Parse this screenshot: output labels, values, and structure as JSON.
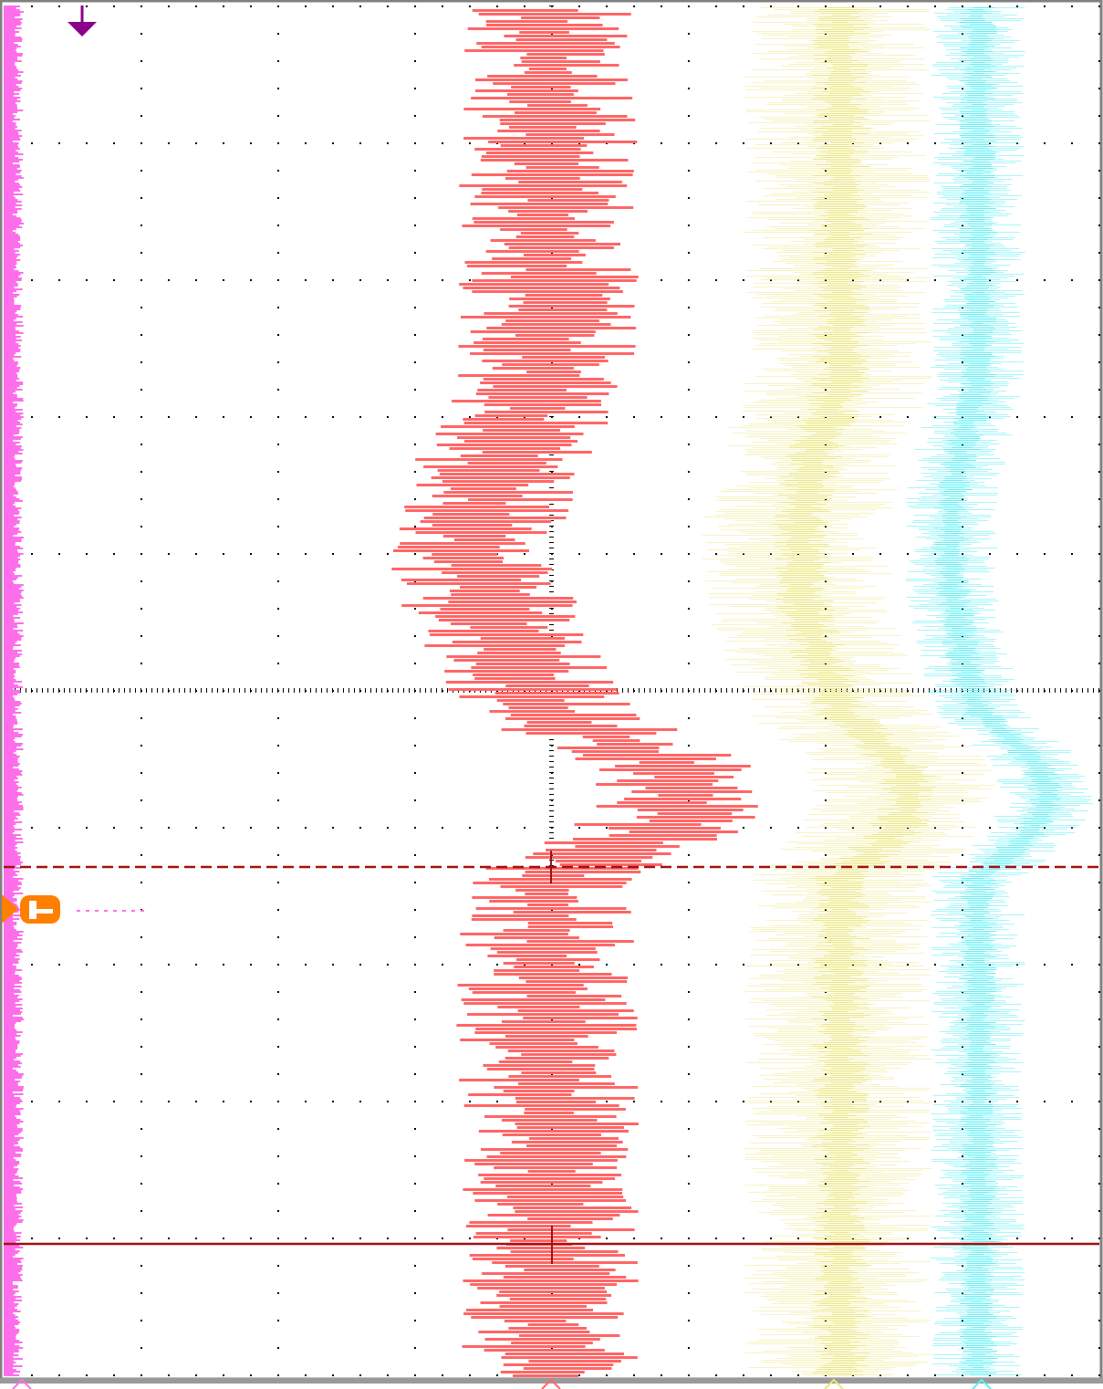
{
  "screen": {
    "rotation": "portrait-rotated-90",
    "grid": {
      "time_divisions": 10,
      "volt_divisions": 8,
      "style": "dotted"
    }
  },
  "colors": {
    "background": "#ffffff",
    "grid": "#000000",
    "channel_magenta": "#ff6eea",
    "channel_red": "#ff6666",
    "channel_yellow": "#ebe67a",
    "channel_cyan": "#5ef0f5",
    "trigger_level": "#a01010",
    "cursor": "#a01010",
    "trigger_marker": "#8a008a",
    "reference_marker": "#ff7f00",
    "border": "#808080"
  },
  "channels": [
    {
      "id": "ch-magenta",
      "color": "channel_magenta",
      "shape": "flat"
    },
    {
      "id": "ch-red",
      "color": "channel_red",
      "shape": "bump"
    },
    {
      "id": "ch-yellow",
      "color": "channel_yellow",
      "shape": "bump"
    },
    {
      "id": "ch-cyan",
      "color": "channel_cyan",
      "shape": "bump"
    }
  ],
  "markers": {
    "trigger_position_icon": "down-arrow-icon",
    "reference_icon": "reference-marker-icon",
    "ground_markers": [
      "channel-ground-icon",
      "channel-ground-icon",
      "channel-ground-icon",
      "channel-ground-icon"
    ]
  }
}
